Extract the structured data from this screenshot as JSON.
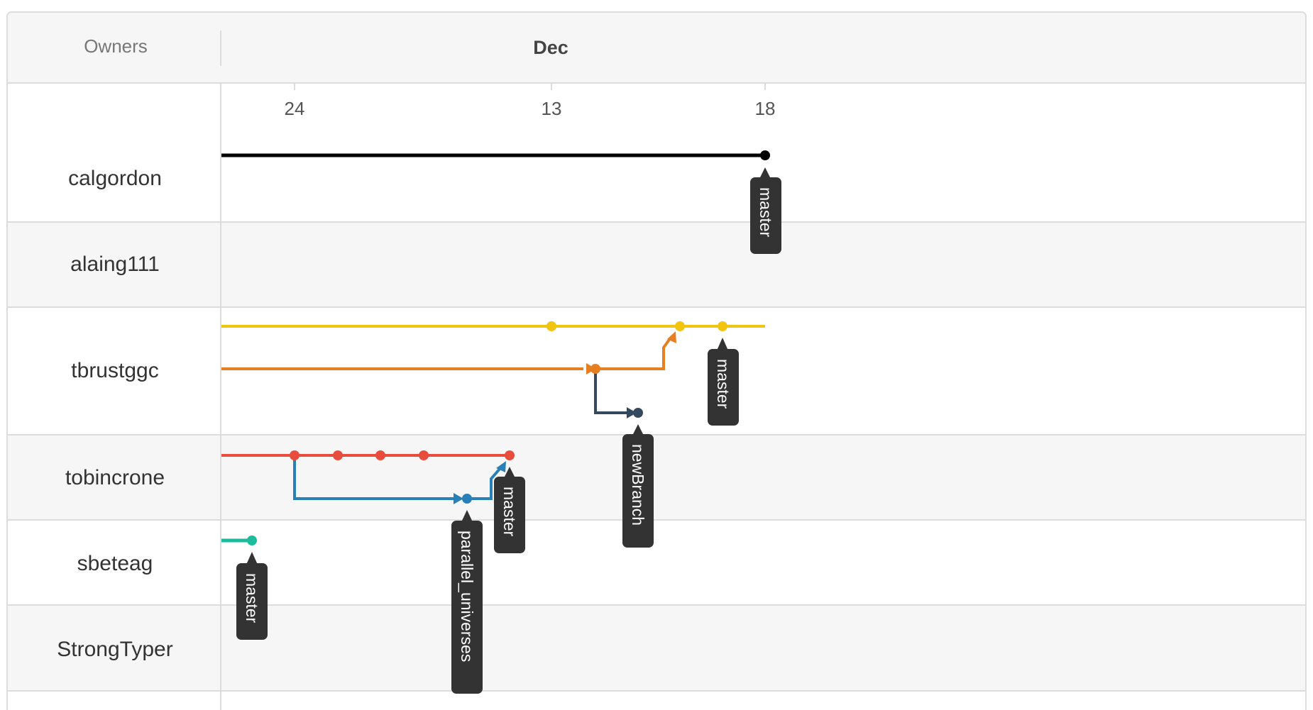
{
  "header": {
    "owners_label": "Owners",
    "month_label": "Dec"
  },
  "dates": [
    "24",
    "13",
    "18"
  ],
  "owners": [
    "calgordon",
    "alaing111",
    "tbrustggc",
    "tobincrone",
    "sbeteag",
    "StrongTyper"
  ],
  "colors": {
    "calgordon": "#000000",
    "tbrust_master": "#f1c40f",
    "tbrust_fork": "#e67e22",
    "newBranch": "#34495e",
    "tobincrone": "#e74c3c",
    "parallel_universes": "#2980b9",
    "sbeteag": "#1abc9c",
    "label_bg": "#333333"
  },
  "branch_labels": {
    "calgordon_master": "master",
    "tbrustggc_master": "master",
    "tbrustggc_newBranch": "newBranch",
    "tobincrone_master": "master",
    "tobincrone_parallel": "parallel_universes",
    "sbeteag_master": "master"
  }
}
